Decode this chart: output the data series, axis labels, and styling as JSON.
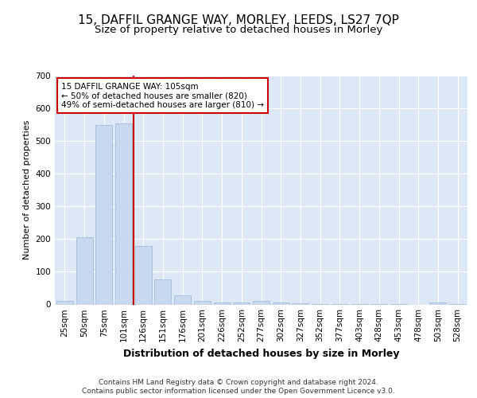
{
  "title": "15, DAFFIL GRANGE WAY, MORLEY, LEEDS, LS27 7QP",
  "subtitle": "Size of property relative to detached houses in Morley",
  "xlabel": "Distribution of detached houses by size in Morley",
  "ylabel": "Number of detached properties",
  "categories": [
    "25sqm",
    "50sqm",
    "75sqm",
    "101sqm",
    "126sqm",
    "151sqm",
    "176sqm",
    "201sqm",
    "226sqm",
    "252sqm",
    "277sqm",
    "302sqm",
    "327sqm",
    "352sqm",
    "377sqm",
    "403sqm",
    "428sqm",
    "453sqm",
    "478sqm",
    "503sqm",
    "528sqm"
  ],
  "values": [
    10,
    205,
    550,
    555,
    180,
    77,
    27,
    10,
    7,
    5,
    10,
    5,
    3,
    2,
    1,
    1,
    1,
    1,
    0,
    5,
    1
  ],
  "bar_color": "#c8d8ee",
  "bar_edge_color": "#9ab8d8",
  "vline_index": 3,
  "vline_color": "#cc0000",
  "annotation_text": "15 DAFFIL GRANGE WAY: 105sqm\n← 50% of detached houses are smaller (820)\n49% of semi-detached houses are larger (810) →",
  "annotation_box_color": "#ffffff",
  "annotation_box_edge": "#cc0000",
  "ylim": [
    0,
    700
  ],
  "yticks": [
    0,
    100,
    200,
    300,
    400,
    500,
    600,
    700
  ],
  "title_fontsize": 11,
  "subtitle_fontsize": 9.5,
  "xlabel_fontsize": 9,
  "ylabel_fontsize": 8,
  "tick_fontsize": 7.5,
  "footer1": "Contains HM Land Registry data © Crown copyright and database right 2024.",
  "footer2": "Contains public sector information licensed under the Open Government Licence v3.0.",
  "fig_bg_color": "#ffffff",
  "plot_bg_color": "#dce8f5"
}
